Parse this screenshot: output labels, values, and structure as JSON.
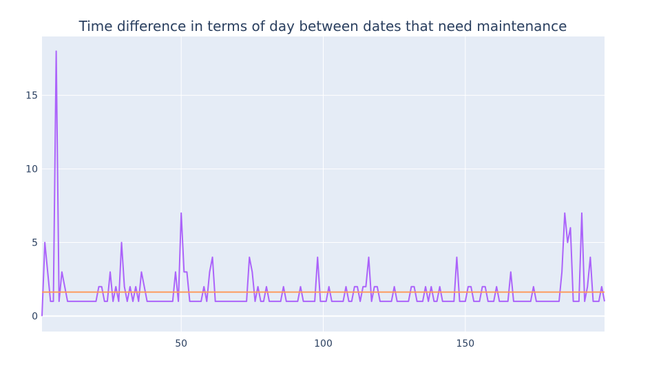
{
  "chart_data": {
    "type": "line",
    "title": "Time difference in terms of day between dates that need maintenance",
    "xlabel": "",
    "ylabel": "",
    "xlim": [
      1,
      199
    ],
    "ylim": [
      -1.05,
      19.0
    ],
    "grid": true,
    "x_ticks": [
      50,
      100,
      150
    ],
    "y_ticks": [
      0,
      5,
      10,
      15
    ],
    "series": [
      {
        "color": "#ab63fa",
        "x_start": 1,
        "values": [
          0,
          5,
          3,
          1,
          1,
          18,
          1,
          3,
          2,
          1,
          1,
          1,
          1,
          1,
          1,
          1,
          1,
          1,
          1,
          1,
          2,
          2,
          1,
          1,
          3,
          1,
          2,
          1,
          5,
          2,
          1,
          2,
          1,
          2,
          1,
          3,
          2,
          1,
          1,
          1,
          1,
          1,
          1,
          1,
          1,
          1,
          1,
          3,
          1,
          7,
          3,
          3,
          1,
          1,
          1,
          1,
          1,
          2,
          1,
          3,
          4,
          1,
          1,
          1,
          1,
          1,
          1,
          1,
          1,
          1,
          1,
          1,
          1,
          4,
          3,
          1,
          2,
          1,
          1,
          2,
          1,
          1,
          1,
          1,
          1,
          2,
          1,
          1,
          1,
          1,
          1,
          2,
          1,
          1,
          1,
          1,
          1,
          4,
          1,
          1,
          1,
          2,
          1,
          1,
          1,
          1,
          1,
          2,
          1,
          1,
          2,
          2,
          1,
          2,
          2,
          4,
          1,
          2,
          2,
          1,
          1,
          1,
          1,
          1,
          2,
          1,
          1,
          1,
          1,
          1,
          2,
          2,
          1,
          1,
          1,
          2,
          1,
          2,
          1,
          1,
          2,
          1,
          1,
          1,
          1,
          1,
          4,
          1,
          1,
          1,
          2,
          2,
          1,
          1,
          1,
          2,
          2,
          1,
          1,
          1,
          2,
          1,
          1,
          1,
          1,
          3,
          1,
          1,
          1,
          1,
          1,
          1,
          1,
          2,
          1,
          1,
          1,
          1,
          1,
          1,
          1,
          1,
          1,
          3,
          7,
          5,
          6,
          1,
          1,
          1,
          7,
          1,
          2,
          4,
          1,
          1,
          1,
          2,
          1
        ]
      },
      {
        "color": "#fe9a5c",
        "type": "constant",
        "value": 1.63
      }
    ]
  }
}
